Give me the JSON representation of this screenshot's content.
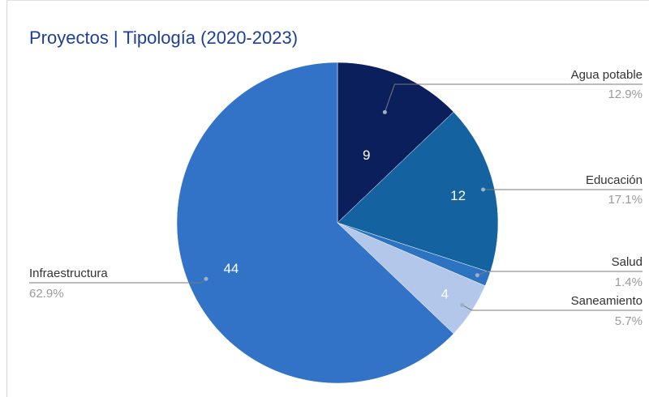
{
  "chart_data": {
    "type": "pie",
    "title": "Proyectos | Tipología (2020-2023)",
    "categories": [
      "Agua potable",
      "Educación",
      "Salud",
      "Saneamiento",
      "Infraestructura"
    ],
    "values": [
      9,
      12,
      1,
      4,
      44
    ],
    "value_labels": [
      "9",
      "12",
      "",
      "4",
      "44"
    ],
    "percentages": [
      "12.9%",
      "17.1%",
      "1.4%",
      "5.7%",
      "62.9%"
    ],
    "colors": [
      "#0b1f5c",
      "#1462a0",
      "#2c73c1",
      "#b3c7ea",
      "#3273c7"
    ],
    "value_label_colors": [
      "#ffffff",
      "#ffffff",
      "#ffffff",
      "#ffffff",
      "#ffffff"
    ],
    "start": "12 o'clock",
    "direction": "clockwise",
    "legend": "outside labels with leader lines"
  }
}
